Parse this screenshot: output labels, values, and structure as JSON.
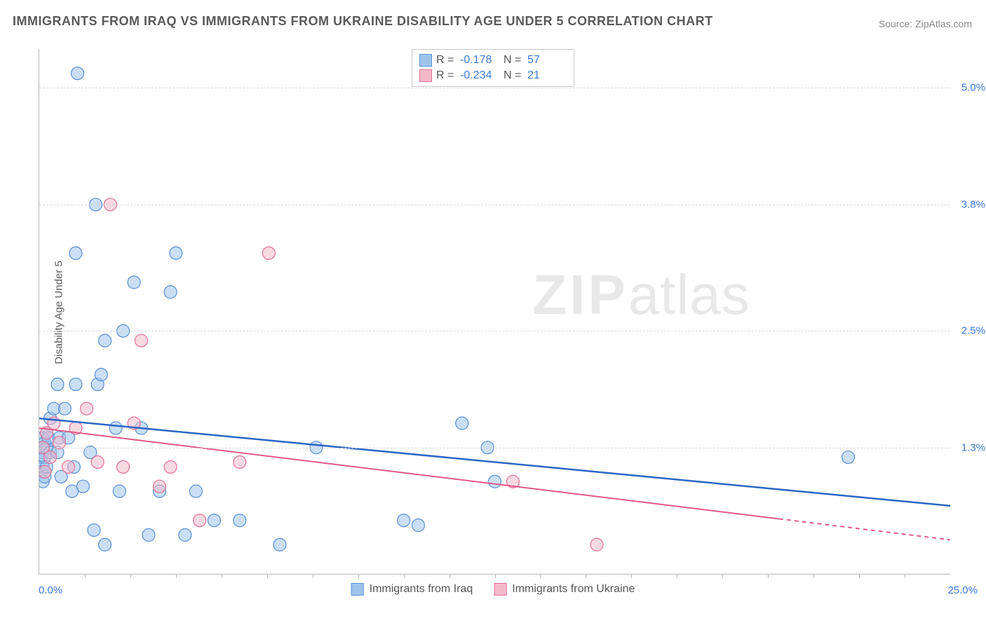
{
  "title": "IMMIGRANTS FROM IRAQ VS IMMIGRANTS FROM UKRAINE DISABILITY AGE UNDER 5 CORRELATION CHART",
  "source": "Source: ZipAtlas.com",
  "ylabel": "Disability Age Under 5",
  "watermark_zip": "ZIP",
  "watermark_atlas": "atlas",
  "chart": {
    "type": "scatter",
    "xlim": [
      0.0,
      25.0
    ],
    "ylim": [
      0.0,
      5.4
    ],
    "x_min_label": "0.0%",
    "x_max_label": "25.0%",
    "ytick_labels": [
      "1.3%",
      "2.5%",
      "3.8%",
      "5.0%"
    ],
    "ytick_values": [
      1.3,
      2.5,
      3.8,
      5.0
    ],
    "xtick_values": [
      1.25,
      2.5,
      3.75,
      5.0,
      6.25,
      7.5,
      8.75,
      10.0,
      11.25,
      12.5,
      13.75,
      15.0,
      16.25,
      17.5,
      18.75,
      20.0,
      21.25,
      22.5,
      23.75
    ],
    "background_color": "#ffffff",
    "grid_color": "#d8d8d8",
    "axis_color": "#b8b8b8",
    "tick_label_color": "#3a7ad9",
    "marker_radius": 9,
    "marker_opacity": 0.55,
    "series": [
      {
        "name": "Immigrants from Iraq",
        "color_fill": "#9ec4ec",
        "color_stroke": "#5a8fd6",
        "trend_color": "#2b66c4",
        "trend_width": 2.5,
        "trend": {
          "x1": 0.0,
          "y1": 1.6,
          "x2": 25.0,
          "y2": 0.7,
          "dash_after_x": null
        },
        "R": "-0.178",
        "N": "57",
        "points": [
          [
            0.05,
            1.05
          ],
          [
            0.05,
            1.2
          ],
          [
            0.05,
            1.3
          ],
          [
            0.1,
            0.95
          ],
          [
            0.1,
            1.1
          ],
          [
            0.1,
            1.25
          ],
          [
            0.1,
            1.4
          ],
          [
            0.15,
            1.0
          ],
          [
            0.15,
            1.2
          ],
          [
            0.15,
            1.35
          ],
          [
            0.2,
            1.1
          ],
          [
            0.2,
            1.3
          ],
          [
            0.2,
            1.45
          ],
          [
            0.25,
            1.4
          ],
          [
            0.3,
            1.25
          ],
          [
            0.3,
            1.6
          ],
          [
            0.4,
            1.7
          ],
          [
            0.5,
            1.25
          ],
          [
            0.5,
            1.95
          ],
          [
            0.55,
            1.4
          ],
          [
            0.6,
            1.0
          ],
          [
            0.7,
            1.7
          ],
          [
            0.8,
            1.4
          ],
          [
            0.9,
            0.85
          ],
          [
            0.95,
            1.1
          ],
          [
            1.0,
            1.95
          ],
          [
            1.0,
            3.3
          ],
          [
            1.05,
            5.15
          ],
          [
            1.2,
            0.9
          ],
          [
            1.4,
            1.25
          ],
          [
            1.5,
            0.45
          ],
          [
            1.55,
            3.8
          ],
          [
            1.6,
            1.95
          ],
          [
            1.7,
            2.05
          ],
          [
            1.8,
            0.3
          ],
          [
            1.8,
            2.4
          ],
          [
            2.1,
            1.5
          ],
          [
            2.2,
            0.85
          ],
          [
            2.3,
            2.5
          ],
          [
            2.6,
            3.0
          ],
          [
            2.8,
            1.5
          ],
          [
            3.0,
            0.4
          ],
          [
            3.3,
            0.85
          ],
          [
            3.6,
            2.9
          ],
          [
            3.75,
            3.3
          ],
          [
            4.0,
            0.4
          ],
          [
            4.3,
            0.85
          ],
          [
            4.8,
            0.55
          ],
          [
            5.5,
            0.55
          ],
          [
            6.6,
            0.3
          ],
          [
            7.6,
            1.3
          ],
          [
            10.0,
            0.55
          ],
          [
            10.4,
            0.5
          ],
          [
            11.6,
            1.55
          ],
          [
            12.3,
            1.3
          ],
          [
            12.5,
            0.95
          ],
          [
            22.2,
            1.2
          ]
        ]
      },
      {
        "name": "Immigrants from Ukraine",
        "color_fill": "#f3b9ca",
        "color_stroke": "#e46f97",
        "trend_color": "#e05a8a",
        "trend_width": 2,
        "trend": {
          "x1": 0.0,
          "y1": 1.5,
          "x2": 25.0,
          "y2": 0.35,
          "dash_after_x": 20.3
        },
        "R": "-0.234",
        "N": "21",
        "points": [
          [
            0.1,
            1.3
          ],
          [
            0.15,
            1.05
          ],
          [
            0.2,
            1.45
          ],
          [
            0.3,
            1.2
          ],
          [
            0.4,
            1.55
          ],
          [
            0.55,
            1.35
          ],
          [
            0.8,
            1.1
          ],
          [
            1.0,
            1.5
          ],
          [
            1.3,
            1.7
          ],
          [
            1.6,
            1.15
          ],
          [
            1.95,
            3.8
          ],
          [
            2.3,
            1.1
          ],
          [
            2.6,
            1.55
          ],
          [
            2.8,
            2.4
          ],
          [
            3.3,
            0.9
          ],
          [
            3.6,
            1.1
          ],
          [
            4.4,
            0.55
          ],
          [
            5.5,
            1.15
          ],
          [
            6.3,
            3.3
          ],
          [
            13.0,
            0.95
          ],
          [
            15.3,
            0.3
          ]
        ]
      }
    ]
  },
  "legend_top": {
    "r_label": "R  =",
    "n_label": "N  ="
  },
  "legend_bottom": [
    {
      "label": "Immigrants from Iraq",
      "fill": "#9ec4ec",
      "stroke": "#5a8fd6"
    },
    {
      "label": "Immigrants from Ukraine",
      "fill": "#f3b9ca",
      "stroke": "#e46f97"
    }
  ]
}
